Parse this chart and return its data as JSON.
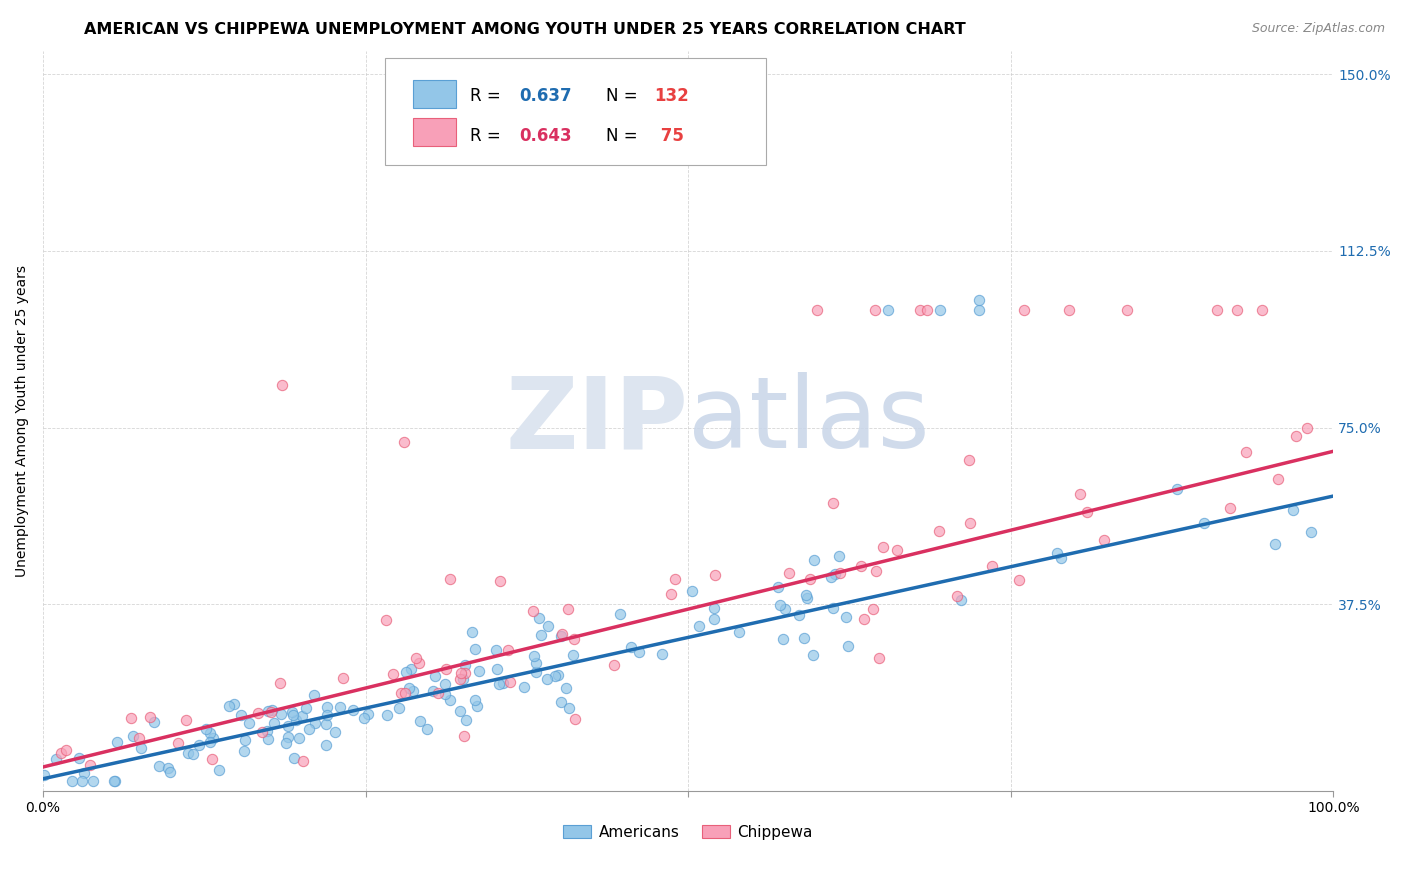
{
  "title": "AMERICAN VS CHIPPEWA UNEMPLOYMENT AMONG YOUTH UNDER 25 YEARS CORRELATION CHART",
  "source": "Source: ZipAtlas.com",
  "ylabel": "Unemployment Among Youth under 25 years",
  "xlim": [
    0.0,
    1.0
  ],
  "ylim": [
    -0.02,
    1.55
  ],
  "ytick_positions": [
    0.375,
    0.75,
    1.125,
    1.5
  ],
  "ytick_labels": [
    "37.5%",
    "75.0%",
    "112.5%",
    "150.0%"
  ],
  "blue_color": "#93c6e8",
  "pink_color": "#f8a0b8",
  "blue_edge_color": "#5a9fd4",
  "pink_edge_color": "#e8607a",
  "blue_trend_color": "#1f6cb0",
  "pink_trend_color": "#d93060",
  "watermark_zip": "ZIP",
  "watermark_atlas": "atlas",
  "watermark_color": "#dde5f0",
  "title_fontsize": 11.5,
  "source_fontsize": 9,
  "axis_label_fontsize": 10,
  "tick_fontsize": 10,
  "legend_R_color": "#1f6cb0",
  "legend_N_color": "#e84040",
  "legend_pink_R_color": "#d93060",
  "blue_trend_slope": 0.6,
  "blue_trend_intercept": 0.005,
  "pink_trend_slope": 0.67,
  "pink_trend_intercept": 0.03
}
